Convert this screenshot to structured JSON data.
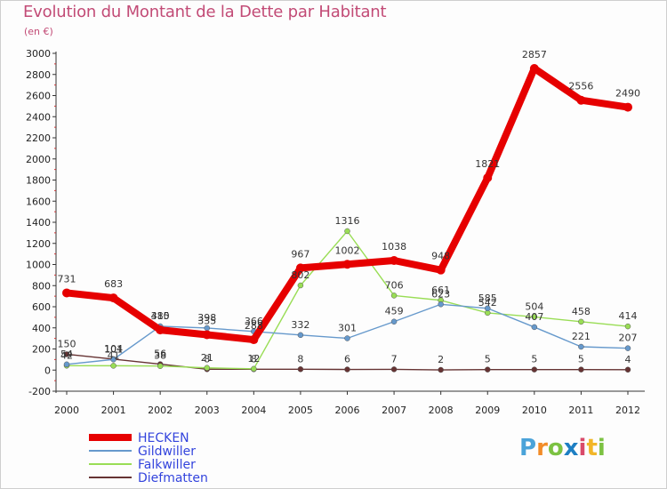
{
  "title": "Evolution du Montant de la Dette par Habitant",
  "subtitle": "(en €)",
  "logo": "Proxiti",
  "chart_data": {
    "type": "line",
    "x": [
      "2000",
      "2001",
      "2002",
      "2003",
      "2004",
      "2005",
      "2006",
      "2007",
      "2008",
      "2009",
      "2010",
      "2011",
      "2012"
    ],
    "ylim": [
      -200,
      3000
    ],
    "yticks": [
      -200,
      0,
      200,
      400,
      600,
      800,
      1000,
      1200,
      1400,
      1600,
      1800,
      2000,
      2200,
      2400,
      2600,
      2800,
      3000
    ],
    "grid": false,
    "legend_position": "bottom-left",
    "series": [
      {
        "name": "HECKEN",
        "color": "#e60000",
        "values": [
          731,
          683,
          380,
          335,
          288,
          967,
          1002,
          1038,
          948,
          1821,
          2857,
          2556,
          2490
        ],
        "labels": [
          "731",
          "683",
          "380",
          "335",
          "288",
          "967",
          "1002",
          "1038",
          "948",
          "1821",
          "2857",
          "2556",
          "2490"
        ]
      },
      {
        "name": "Gildwiller",
        "color": "#6699cc",
        "values": [
          54,
          101,
          415,
          398,
          366,
          332,
          301,
          459,
          623,
          585,
          407,
          221,
          207
        ],
        "labels": [
          "54",
          "101",
          "415",
          "398",
          "366",
          "332",
          "301",
          "459",
          "623",
          "585",
          "407",
          "221",
          "207"
        ]
      },
      {
        "name": "Falkwiller",
        "color": "#99dd55",
        "values": [
          42,
          41,
          38,
          21,
          12,
          802,
          1316,
          706,
          661,
          542,
          504,
          458,
          414
        ],
        "labels": [
          "42",
          "41",
          "38",
          "21",
          "12",
          "802",
          "1316",
          "706",
          "661",
          "542",
          "504",
          "458",
          "414"
        ]
      },
      {
        "name": "Diefmatten",
        "color": "#663333",
        "values": [
          150,
          104,
          56,
          8,
          8,
          8,
          6,
          7,
          2,
          5,
          5,
          5,
          4
        ],
        "labels": [
          "150",
          "104",
          "56",
          "8",
          "8",
          "8",
          "6",
          "7",
          "2",
          "5",
          "5",
          "5",
          "4"
        ]
      }
    ]
  }
}
